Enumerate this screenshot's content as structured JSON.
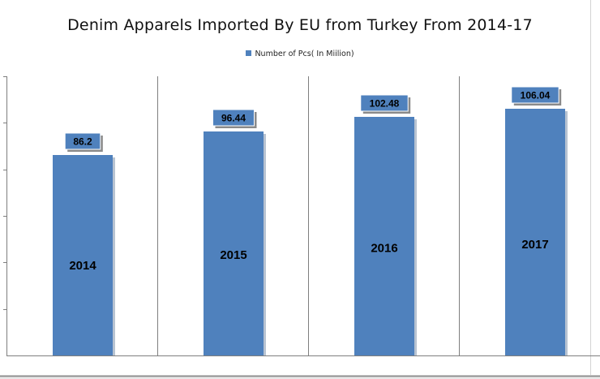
{
  "chart_data": {
    "type": "bar",
    "title": "Denim Apparels Imported By EU from Turkey From 2014-17",
    "legend": {
      "position": "top",
      "entries": [
        "Number of Pcs( In Miilion)"
      ]
    },
    "categories": [
      "2014",
      "2015",
      "2016",
      "2017"
    ],
    "series": [
      {
        "name": "Number of Pcs( In Miilion)",
        "values": [
          86.2,
          96.44,
          102.48,
          106.04
        ]
      }
    ],
    "data_labels": [
      "86.2",
      "96.44",
      "102.48",
      "106.04"
    ],
    "ylim": [
      0,
      120
    ],
    "grid": {
      "vertical": true,
      "horizontal": false
    },
    "colors": {
      "bar": "#4f81bd"
    }
  }
}
